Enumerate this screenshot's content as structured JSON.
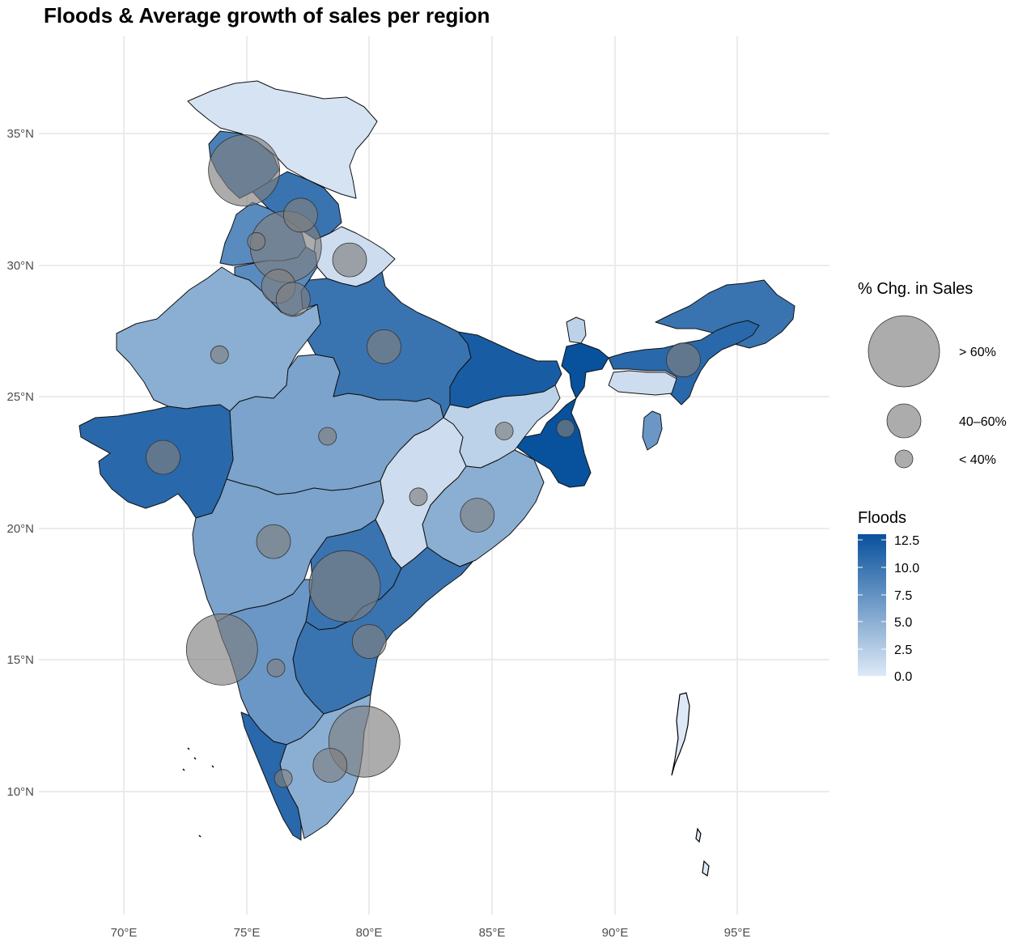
{
  "title": "Floods & Average growth of sales per region",
  "colors": {
    "low": "#dde9f6",
    "high": "#08519c",
    "bubble": "#7f7f7f",
    "grid": "#ebebeb"
  },
  "chart_data": {
    "type": "map",
    "title": "Floods & Average growth of sales per region",
    "x_ticks": [
      "70°E",
      "75°E",
      "80°E",
      "85°E",
      "90°E",
      "95°E"
    ],
    "y_ticks": [
      "35°N",
      "30°N",
      "25°N",
      "20°N",
      "15°N",
      "10°N"
    ],
    "grid": true,
    "legend_size": {
      "title": "% Chg. in Sales",
      "entries": [
        "> 60%",
        "40–60%",
        "< 40%"
      ]
    },
    "legend_fill": {
      "title": "Floods",
      "ticks": [
        "12.5",
        "10.0",
        "7.5",
        "5.0",
        "2.5",
        "0.0"
      ],
      "range": [
        0,
        13
      ]
    },
    "regions": [
      {
        "floods": 0.5
      },
      {
        "floods": 9
      },
      {
        "floods": 10
      },
      {
        "floods": 8
      },
      {
        "floods": 1
      },
      {
        "floods": 12
      },
      {
        "floods": 8
      },
      {
        "floods": 5
      },
      {
        "floods": 6
      },
      {
        "floods": 10
      },
      {
        "floods": 12
      },
      {
        "floods": 13
      },
      {
        "floods": 2
      },
      {
        "floods": 10
      },
      {
        "floods": 2
      },
      {
        "floods": 5
      },
      {
        "floods": 11
      },
      {
        "floods": 1
      },
      {
        "floods": 7
      },
      {
        "floods": 11
      },
      {
        "floods": 6
      },
      {
        "floods": 1
      },
      {
        "floods": 10
      },
      {
        "floods": 10
      },
      {
        "floods": 7
      },
      {
        "floods": 5
      },
      {
        "floods": 11
      }
    ],
    "bubbles": [
      {
        "lon": 74.9,
        "lat": 33.6,
        "category": "> 60%"
      },
      {
        "lon": 76.6,
        "lat": 30.7,
        "category": "> 60%"
      },
      {
        "lon": 79.0,
        "lat": 17.8,
        "category": "> 60%"
      },
      {
        "lon": 74.0,
        "lat": 15.4,
        "category": "> 60%"
      },
      {
        "lon": 79.8,
        "lat": 11.9,
        "category": "> 60%"
      },
      {
        "lon": 77.2,
        "lat": 31.9,
        "category": "40–60%"
      },
      {
        "lon": 79.2,
        "lat": 30.2,
        "category": "40–60%"
      },
      {
        "lon": 76.3,
        "lat": 29.2,
        "category": "40–60%"
      },
      {
        "lon": 76.9,
        "lat": 28.7,
        "category": "40–60%"
      },
      {
        "lon": 80.6,
        "lat": 26.9,
        "category": "40–60%"
      },
      {
        "lon": 71.6,
        "lat": 22.7,
        "category": "40–60%"
      },
      {
        "lon": 76.1,
        "lat": 19.5,
        "category": "40–60%"
      },
      {
        "lon": 84.4,
        "lat": 20.5,
        "category": "40–60%"
      },
      {
        "lon": 80.0,
        "lat": 15.7,
        "category": "40–60%"
      },
      {
        "lon": 78.4,
        "lat": 11.0,
        "category": "40–60%"
      },
      {
        "lon": 92.8,
        "lat": 26.4,
        "category": "40–60%"
      },
      {
        "lon": 75.4,
        "lat": 30.9,
        "category": "< 40%"
      },
      {
        "lon": 73.9,
        "lat": 26.6,
        "category": "< 40%"
      },
      {
        "lon": 78.3,
        "lat": 23.5,
        "category": "< 40%"
      },
      {
        "lon": 85.5,
        "lat": 23.7,
        "category": "< 40%"
      },
      {
        "lon": 88.0,
        "lat": 23.8,
        "category": "< 40%"
      },
      {
        "lon": 82.0,
        "lat": 21.2,
        "category": "< 40%"
      },
      {
        "lon": 76.2,
        "lat": 14.7,
        "category": "< 40%"
      },
      {
        "lon": 76.5,
        "lat": 10.5,
        "category": "< 40%"
      }
    ]
  }
}
